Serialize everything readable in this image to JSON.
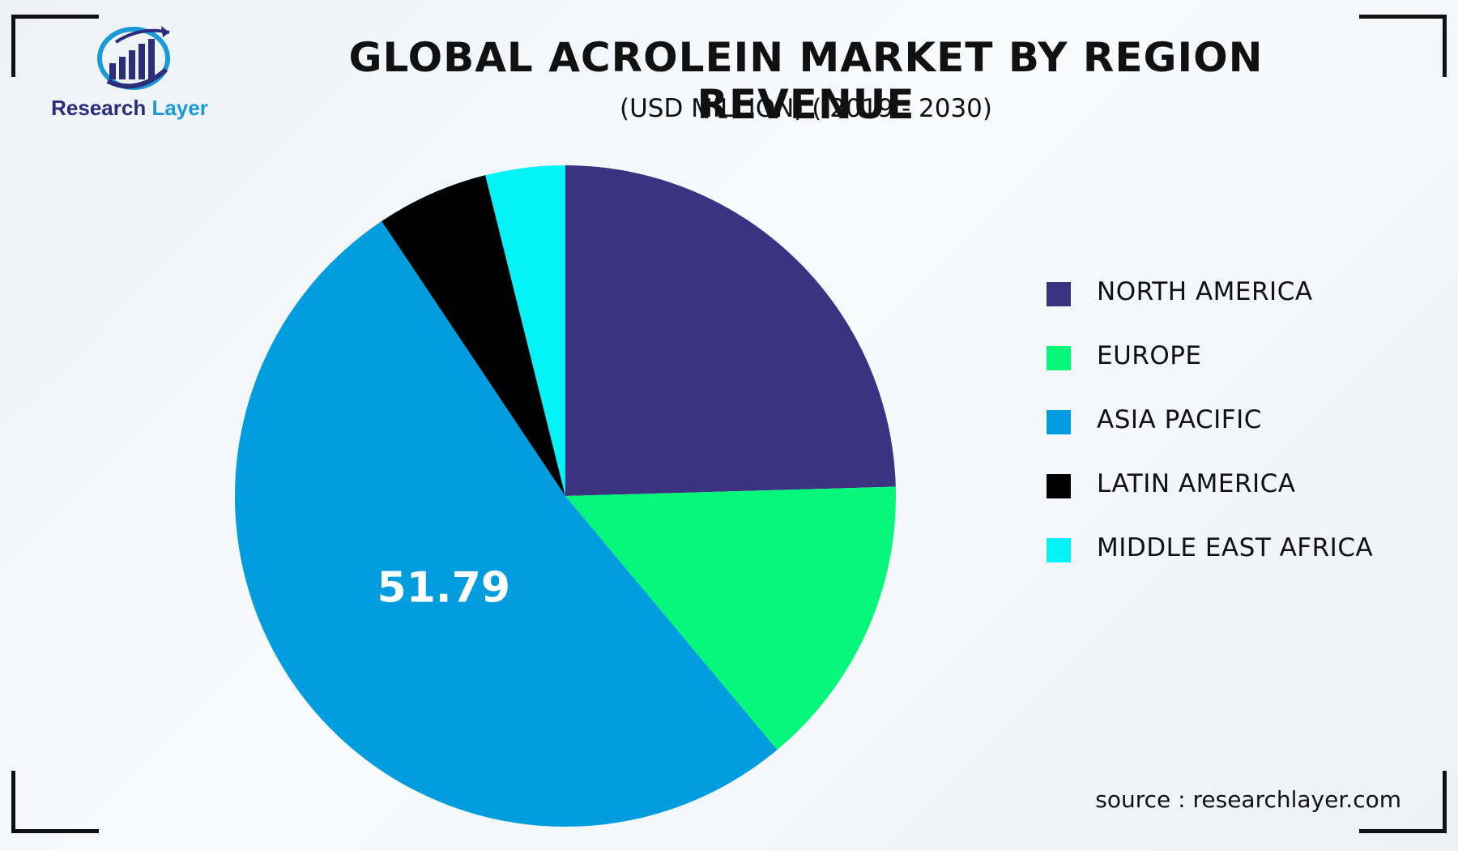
{
  "brand": {
    "name_part1": "Research",
    "name_part2": "Layer"
  },
  "title": "GLOBAL ACROLEIN MARKET BY REGION REVENUE",
  "subtitle": "(USD MILLION) ( 2019 - 2030)",
  "source": "source : researchlayer.com",
  "colors": {
    "north_america": "#3b3282",
    "europe": "#05f87b",
    "asia_pacific": "#019dde",
    "latin_america": "#000000",
    "middle_east_africa": "#03f3f6",
    "brand_dark": "#2a2d7c",
    "brand_light": "#1a9bd8"
  },
  "chart_data": {
    "type": "pie",
    "title": "GLOBAL ACROLEIN MARKET BY REGION REVENUE",
    "subtitle": "(USD MILLION) ( 2019 - 2030)",
    "start_angle": "12 o'clock, clockwise",
    "legend_position": "right",
    "categories": [
      "NORTH AMERICA",
      "EUROPE",
      "ASIA PACIFIC",
      "LATIN AMERICA",
      "MIDDLE EAST AFRICA"
    ],
    "values": [
      24.6,
      14.4,
      51.79,
      5.5,
      3.9
    ],
    "colors": [
      "#3b3282",
      "#05f87b",
      "#019dde",
      "#000000",
      "#03f3f6"
    ],
    "data_labels": [
      {
        "category": "ASIA PACIFIC",
        "text": "51.79"
      }
    ]
  }
}
